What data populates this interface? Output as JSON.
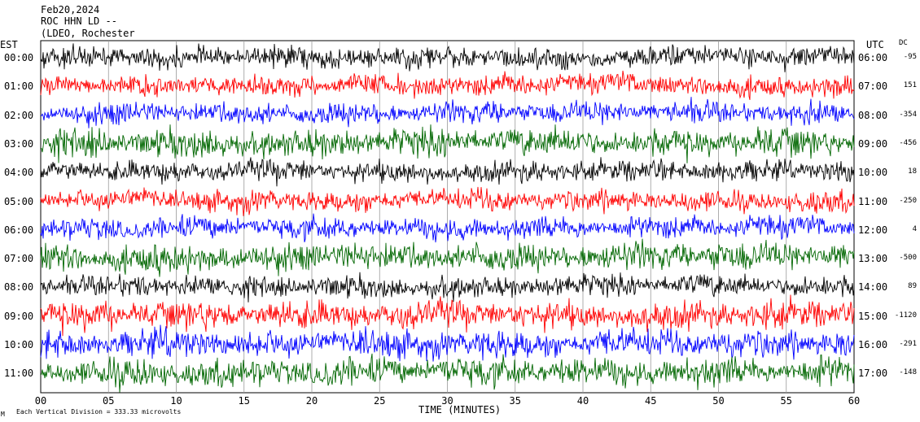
{
  "header": {
    "date": "Feb20,2024",
    "station": "ROC HHN LD --",
    "location": "(LDEO, Rochester"
  },
  "labels": {
    "left_zone": "EST",
    "right_zone": "UTC",
    "dc_heading": "DC",
    "x_axis_title": "TIME (MINUTES)",
    "footer": "Each Vertical Division =  333.33 microvolts",
    "footer_mark": "M"
  },
  "colors": {
    "black": "#000000",
    "red": "#ff0000",
    "blue": "#0000ff",
    "green": "#006600"
  },
  "chart_data": {
    "type": "line",
    "title": "",
    "xlabel": "TIME (MINUTES)",
    "xlim": [
      0,
      60
    ],
    "x_ticks": [
      "00",
      "05",
      "10",
      "15",
      "20",
      "25",
      "30",
      "35",
      "40",
      "45",
      "50",
      "55",
      "60"
    ],
    "grid": true,
    "traces": [
      {
        "est": "00:00",
        "utc": "06:00",
        "dc": "-95",
        "color": "black"
      },
      {
        "est": "01:00",
        "utc": "07:00",
        "dc": "151",
        "color": "red"
      },
      {
        "est": "02:00",
        "utc": "08:00",
        "dc": "-354",
        "color": "blue"
      },
      {
        "est": "03:00",
        "utc": "09:00",
        "dc": "-456",
        "color": "green"
      },
      {
        "est": "04:00",
        "utc": "10:00",
        "dc": "18",
        "color": "black"
      },
      {
        "est": "05:00",
        "utc": "11:00",
        "dc": "-250",
        "color": "red"
      },
      {
        "est": "06:00",
        "utc": "12:00",
        "dc": "4",
        "color": "blue"
      },
      {
        "est": "07:00",
        "utc": "13:00",
        "dc": "-500",
        "color": "green"
      },
      {
        "est": "08:00",
        "utc": "14:00",
        "dc": "89",
        "color": "black"
      },
      {
        "est": "09:00",
        "utc": "15:00",
        "dc": "-1120",
        "color": "red"
      },
      {
        "est": "10:00",
        "utc": "16:00",
        "dc": "-291",
        "color": "blue"
      },
      {
        "est": "11:00",
        "utc": "17:00",
        "dc": "-148",
        "color": "green"
      }
    ]
  }
}
